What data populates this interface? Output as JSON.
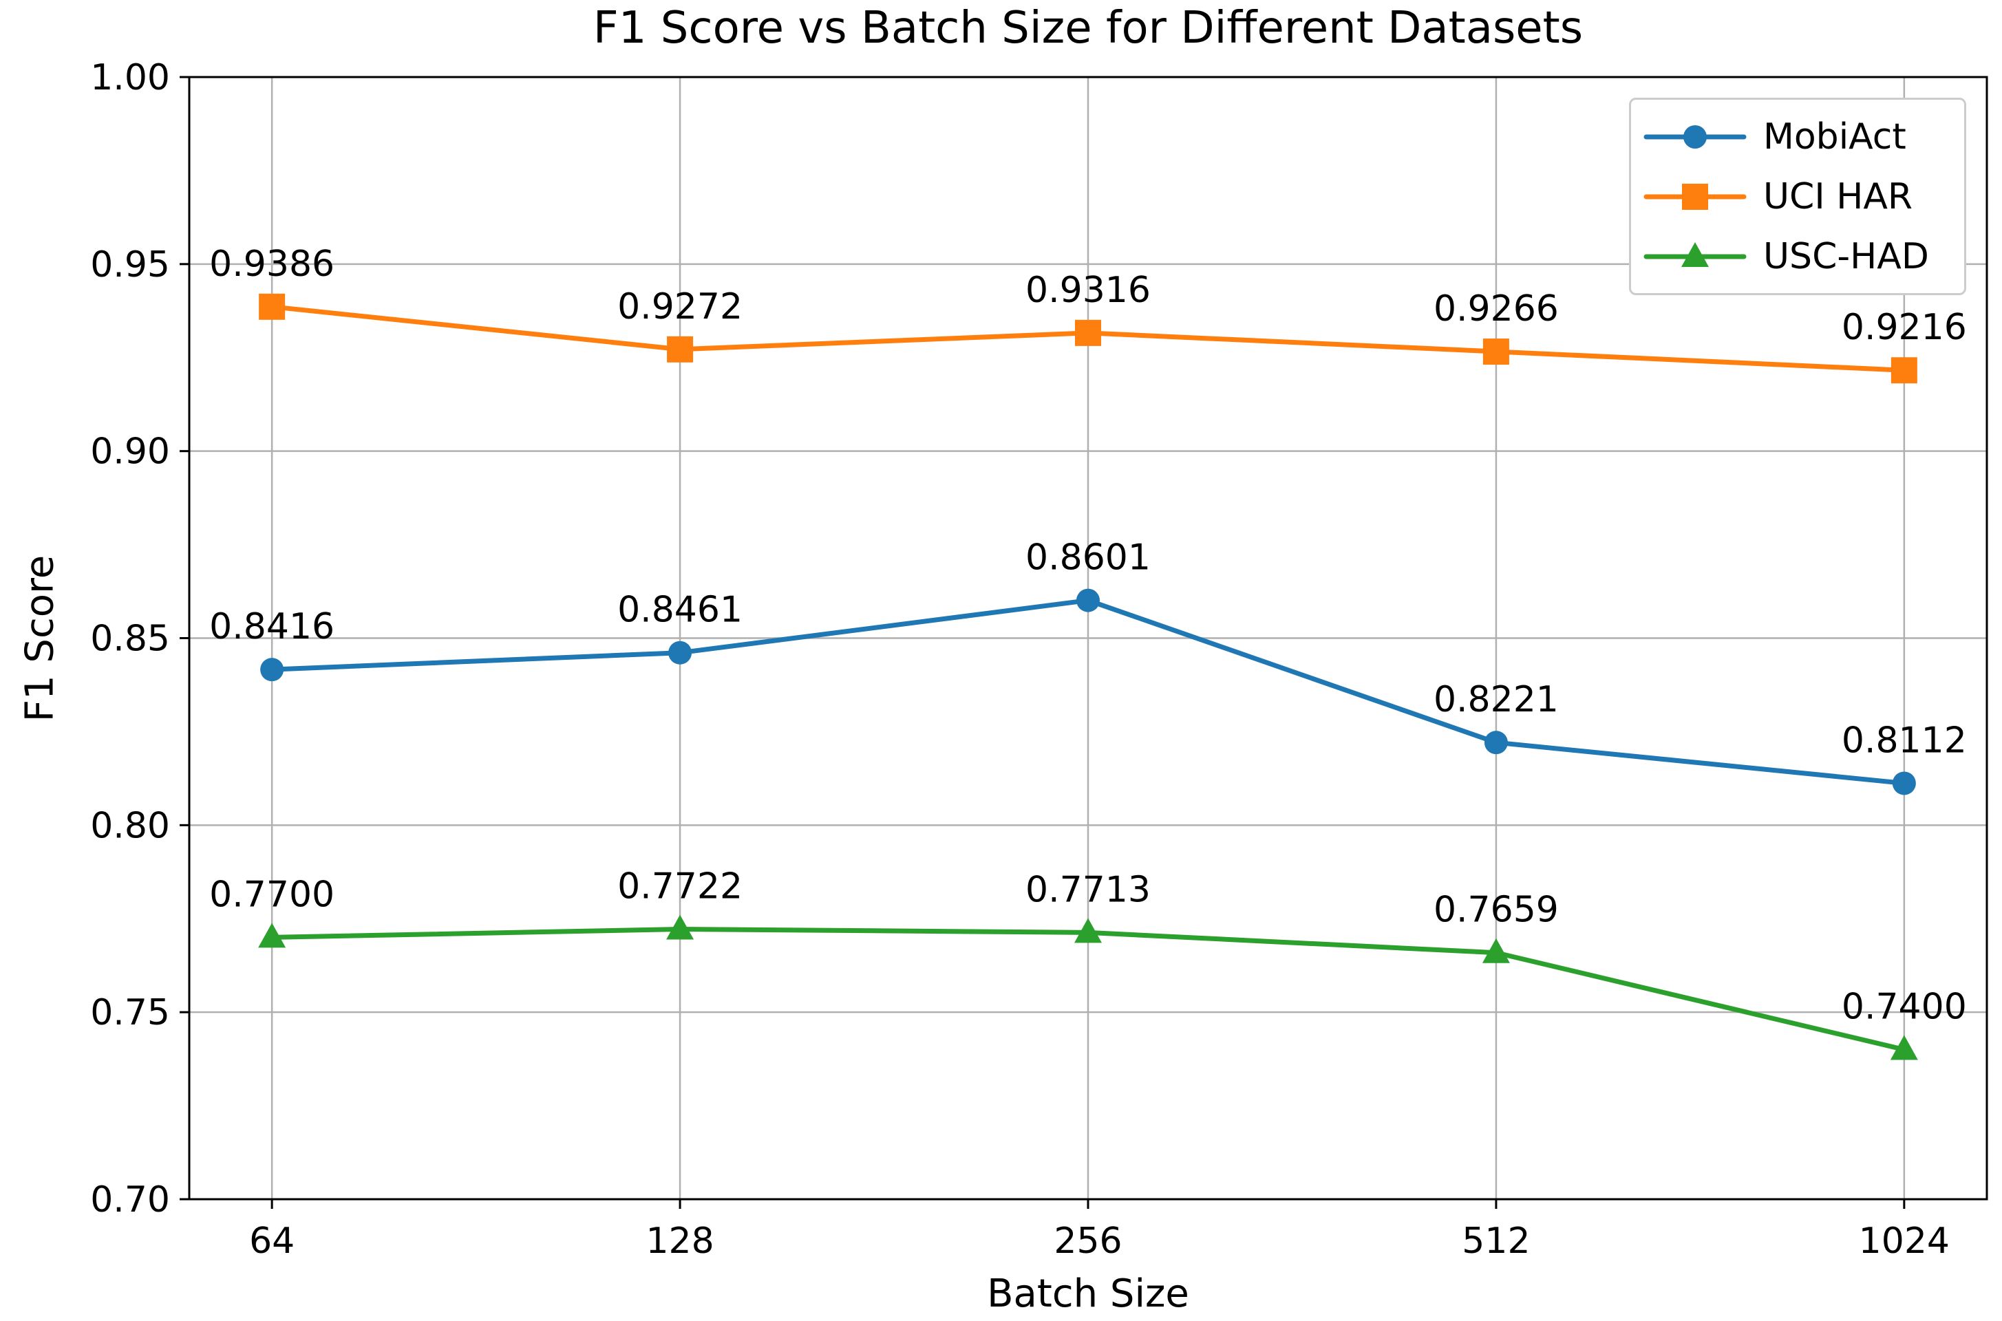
{
  "figure": {
    "background": "#ffffff"
  },
  "chart_data": {
    "type": "line",
    "title": "F1 Score vs Batch Size for Different Datasets",
    "xlabel": "Batch Size",
    "ylabel": "F1 Score",
    "categories": [
      "64",
      "128",
      "256",
      "512",
      "1024"
    ],
    "series": [
      {
        "name": "MobiAct",
        "color": "#1f77b4",
        "marker": "circle",
        "values": [
          0.8416,
          0.8461,
          0.8601,
          0.8221,
          0.8112
        ],
        "labels": [
          "0.8416",
          "0.8461",
          "0.8601",
          "0.8221",
          "0.8112"
        ]
      },
      {
        "name": "UCI HAR",
        "color": "#ff7f0e",
        "marker": "square",
        "values": [
          0.9386,
          0.9272,
          0.9316,
          0.9266,
          0.9216
        ],
        "labels": [
          "0.9386",
          "0.9272",
          "0.9316",
          "0.9266",
          "0.9216"
        ]
      },
      {
        "name": "USC-HAD",
        "color": "#2ca02c",
        "marker": "triangle",
        "values": [
          0.77,
          0.7722,
          0.7713,
          0.7659,
          0.74
        ],
        "labels": [
          "0.7700",
          "0.7722",
          "0.7713",
          "0.7659",
          "0.7400"
        ]
      }
    ],
    "ylim": [
      0.7,
      1.0
    ],
    "y_ticks": [
      0.7,
      0.75,
      0.8,
      0.85,
      0.9,
      0.95,
      1.0
    ],
    "y_tick_labels": [
      "0.70",
      "0.75",
      "0.80",
      "0.85",
      "0.90",
      "0.95",
      "1.00"
    ],
    "x_tick_labels": [
      "64",
      "128",
      "256",
      "512",
      "1024"
    ],
    "grid": true,
    "legend_position": "upper right",
    "colors": {
      "grid": "#b0b0b0",
      "spine": "#000000",
      "text": "#000000",
      "legend_border": "#cccccc",
      "background": "#ffffff"
    }
  }
}
